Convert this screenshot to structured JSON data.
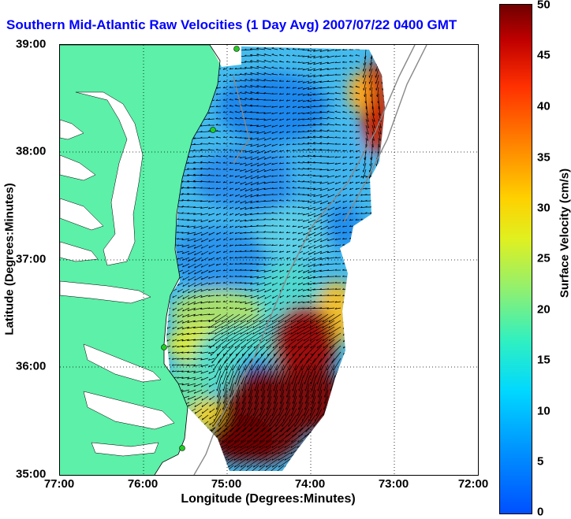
{
  "title": "Southern Mid-Atlantic Raw Velocities (1 Day Avg) 2007/07/22 0400 GMT",
  "axes": {
    "xlabel": "Longitude (Degrees:Minutes)",
    "ylabel": "Latitude (Degrees:Minutes)",
    "xticks": [
      "77:00",
      "76:00",
      "75:00",
      "74:00",
      "73:00",
      "72:00"
    ],
    "yticks": [
      "39:00",
      "38:00",
      "37:00",
      "36:00",
      "35:00"
    ]
  },
  "colorbar": {
    "label": "Surface Velocity (cm/s)",
    "ticks": [
      "50",
      "45",
      "40",
      "35",
      "30",
      "25",
      "20",
      "15",
      "10",
      "5",
      "0"
    ],
    "range": [
      0,
      50
    ]
  },
  "colors": {
    "land": "#5cf0a8",
    "title": "#0000ff",
    "station": "#22cc22"
  }
}
